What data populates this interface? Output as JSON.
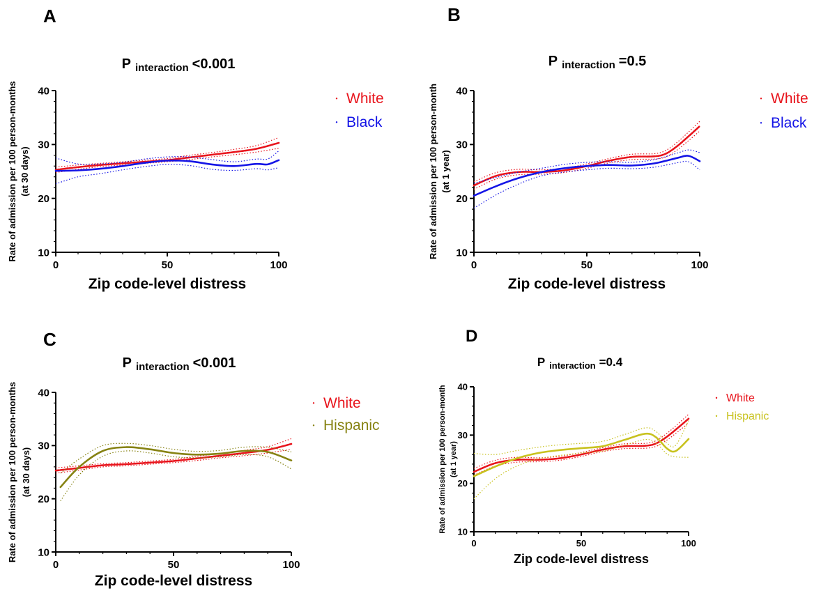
{
  "colors": {
    "white": "#e8141c",
    "black": "#1414e6",
    "hispanic_c": "#868212",
    "hispanic_d": "#c8c21e"
  },
  "chart_data": [
    {
      "type": "line",
      "panel": "A",
      "title_p": "P",
      "title_sub": "interaction",
      "title_value": "<0.001",
      "xlabel": "Zip code-level distress",
      "ylabel": "Rate of admission per 100 person-months",
      "ylabel2": "(at 30 days)",
      "xlim": [
        0,
        100
      ],
      "ylim": [
        10,
        40
      ],
      "xticks": [
        "0",
        "50",
        "100"
      ],
      "yticks": [
        "10",
        "20",
        "30",
        "40"
      ],
      "legend": [
        "White",
        "Black"
      ],
      "series": [
        {
          "name": "White",
          "x": [
            0,
            10,
            20,
            30,
            40,
            50,
            60,
            70,
            80,
            90,
            100
          ],
          "y": [
            25.3,
            25.8,
            26.2,
            26.5,
            26.8,
            27.1,
            27.6,
            28.1,
            28.6,
            29.2,
            30.3
          ],
          "lower": [
            24.8,
            25.4,
            25.9,
            26.2,
            26.5,
            26.8,
            27.2,
            27.7,
            28.1,
            28.6,
            29.3
          ],
          "upper": [
            25.8,
            26.2,
            26.5,
            26.8,
            27.1,
            27.4,
            28.0,
            28.5,
            29.1,
            29.8,
            31.3
          ]
        },
        {
          "name": "Black",
          "x": [
            0,
            10,
            20,
            30,
            40,
            50,
            60,
            70,
            80,
            90,
            95,
            100
          ],
          "y": [
            25.1,
            25.2,
            25.5,
            26.0,
            26.6,
            27.0,
            26.9,
            26.3,
            26.0,
            26.4,
            26.3,
            27.1
          ],
          "lower": [
            22.7,
            24.0,
            24.6,
            25.3,
            25.9,
            26.3,
            26.1,
            25.4,
            25.2,
            25.5,
            25.3,
            25.7
          ],
          "upper": [
            27.5,
            26.4,
            26.4,
            26.7,
            27.3,
            27.7,
            27.7,
            27.2,
            26.8,
            27.3,
            27.3,
            28.8
          ]
        }
      ]
    },
    {
      "type": "line",
      "panel": "B",
      "title_p": "P",
      "title_sub": "interaction",
      "title_value": "=0.5",
      "xlabel": "Zip code-level distress",
      "ylabel": "Rate of admission per 100 person-month",
      "ylabel2": "(at 1 year)",
      "xlim": [
        0,
        100
      ],
      "ylim": [
        10,
        40
      ],
      "xticks": [
        "0",
        "50",
        "100"
      ],
      "yticks": [
        "10",
        "20",
        "30",
        "40"
      ],
      "legend": [
        "White",
        "Black"
      ],
      "series": [
        {
          "name": "White",
          "x": [
            0,
            10,
            20,
            30,
            40,
            50,
            60,
            70,
            80,
            85,
            90,
            95,
            100
          ],
          "y": [
            22.4,
            24.2,
            24.9,
            24.9,
            25.2,
            26.0,
            27.0,
            27.7,
            27.8,
            28.3,
            29.7,
            31.5,
            33.4
          ],
          "lower": [
            21.7,
            23.6,
            24.4,
            24.5,
            24.8,
            25.6,
            26.6,
            27.2,
            27.3,
            27.7,
            29.0,
            30.7,
            32.5
          ],
          "upper": [
            23.1,
            24.8,
            25.4,
            25.3,
            25.6,
            26.4,
            27.4,
            28.2,
            28.3,
            28.9,
            30.4,
            32.3,
            34.3
          ]
        },
        {
          "name": "Black",
          "x": [
            0,
            10,
            20,
            30,
            40,
            50,
            60,
            70,
            80,
            90,
            95,
            100
          ],
          "y": [
            20.5,
            22.3,
            23.8,
            24.9,
            25.6,
            26.0,
            26.2,
            26.1,
            26.5,
            27.5,
            27.9,
            26.9
          ],
          "lower": [
            18.2,
            20.7,
            22.7,
            24.2,
            24.9,
            25.3,
            25.6,
            25.5,
            25.8,
            26.6,
            26.8,
            25.3
          ],
          "upper": [
            22.8,
            23.9,
            24.9,
            25.6,
            26.3,
            26.7,
            26.8,
            26.7,
            27.2,
            28.4,
            29.0,
            28.5
          ]
        }
      ]
    },
    {
      "type": "line",
      "panel": "C",
      "title_p": "P",
      "title_sub": "interaction",
      "title_value": "<0.001",
      "xlabel": "Zip code-level distress",
      "ylabel": "Rate of admission per 100 person-months",
      "ylabel2": "(at 30 days)",
      "xlim": [
        0,
        100
      ],
      "ylim": [
        10,
        40
      ],
      "xticks": [
        "0",
        "50",
        "100"
      ],
      "yticks": [
        "10",
        "20",
        "30",
        "40"
      ],
      "legend": [
        "White",
        "Hispanic"
      ],
      "series": [
        {
          "name": "White",
          "x": [
            0,
            10,
            20,
            30,
            40,
            50,
            60,
            70,
            80,
            90,
            100
          ],
          "y": [
            25.3,
            25.8,
            26.3,
            26.5,
            26.8,
            27.1,
            27.6,
            28.1,
            28.6,
            29.2,
            30.3
          ],
          "lower": [
            24.8,
            25.4,
            26.0,
            26.2,
            26.5,
            26.8,
            27.2,
            27.7,
            28.1,
            28.6,
            29.3
          ],
          "upper": [
            25.8,
            26.2,
            26.6,
            26.8,
            27.1,
            27.4,
            28.0,
            28.5,
            29.1,
            29.8,
            31.3
          ]
        },
        {
          "name": "Hispanic",
          "x": [
            2,
            10,
            20,
            30,
            40,
            50,
            60,
            70,
            80,
            90,
            100
          ],
          "y": [
            22.2,
            26.0,
            29.0,
            29.7,
            29.3,
            28.6,
            28.3,
            28.5,
            29.0,
            28.8,
            27.2
          ],
          "lower": [
            19.6,
            24.5,
            28.0,
            29.0,
            28.6,
            27.9,
            27.7,
            27.9,
            28.3,
            27.9,
            25.6
          ],
          "upper": [
            24.8,
            27.5,
            30.0,
            30.4,
            30.0,
            29.3,
            28.9,
            29.1,
            29.7,
            29.7,
            28.8
          ]
        }
      ]
    },
    {
      "type": "line",
      "panel": "D",
      "title_p": "P",
      "title_sub": "interaction",
      "title_value": "=0.4",
      "xlabel": "Zip code-level distress",
      "ylabel": "Rate of admission per 100 person-month",
      "ylabel2": "(at 1 year)",
      "xlim": [
        0,
        100
      ],
      "ylim": [
        10,
        40
      ],
      "xticks": [
        "0",
        "50",
        "100"
      ],
      "yticks": [
        "10",
        "20",
        "30",
        "40"
      ],
      "legend": [
        "White",
        "Hispanic"
      ],
      "series": [
        {
          "name": "White",
          "x": [
            0,
            10,
            20,
            30,
            40,
            50,
            60,
            70,
            80,
            85,
            90,
            95,
            100
          ],
          "y": [
            22.4,
            24.2,
            24.9,
            24.9,
            25.2,
            26.0,
            27.0,
            27.7,
            27.8,
            28.3,
            29.7,
            31.5,
            33.4
          ],
          "lower": [
            21.7,
            23.6,
            24.4,
            24.5,
            24.8,
            25.6,
            26.6,
            27.2,
            27.3,
            27.7,
            29.0,
            30.7,
            32.5
          ],
          "upper": [
            23.1,
            24.8,
            25.4,
            25.3,
            25.6,
            26.4,
            27.4,
            28.2,
            28.3,
            28.9,
            30.4,
            32.3,
            34.3
          ]
        },
        {
          "name": "Hispanic",
          "x": [
            0,
            10,
            20,
            30,
            40,
            50,
            60,
            70,
            80,
            85,
            90,
            94,
            100
          ],
          "y": [
            21.5,
            23.5,
            25.2,
            26.3,
            26.9,
            27.3,
            27.7,
            29.0,
            30.3,
            29.5,
            27.2,
            26.7,
            29.2
          ],
          "lower": [
            16.8,
            21.0,
            23.6,
            25.1,
            25.8,
            26.3,
            26.7,
            27.9,
            29.1,
            28.3,
            26.1,
            25.5,
            25.4
          ],
          "upper": [
            26.2,
            26.0,
            26.8,
            27.5,
            28.0,
            28.3,
            28.7,
            30.1,
            31.5,
            30.7,
            28.3,
            27.9,
            33.0
          ]
        }
      ]
    }
  ]
}
